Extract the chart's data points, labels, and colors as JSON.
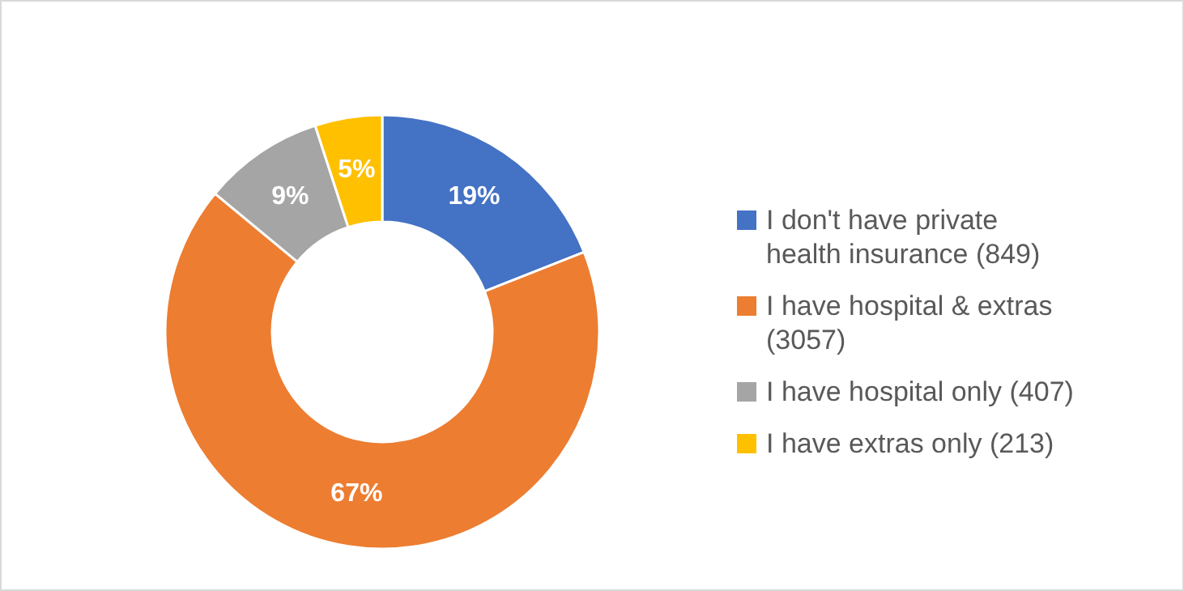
{
  "chart_data": {
    "type": "donut",
    "categories": [
      "I don't have private health insurance (849)",
      "I have hospital & extras (3057)",
      "I have hospital only (407)",
      "I have extras only (213)"
    ],
    "values": [
      19,
      67,
      9,
      5
    ],
    "colors": [
      "#4472c4",
      "#ed7d31",
      "#a5a5a5",
      "#ffc000"
    ],
    "value_labels": [
      "19%",
      "67%",
      "9%",
      "5%"
    ],
    "legend": "right"
  }
}
